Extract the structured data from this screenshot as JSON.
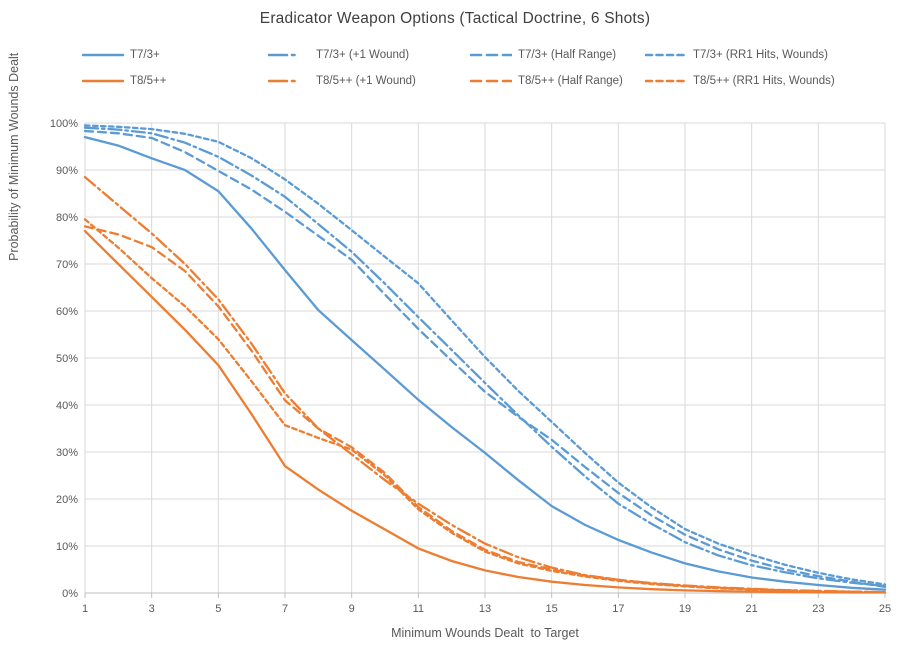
{
  "title": "Eradicator Weapon Options (Tactical Doctrine, 6 Shots)",
  "colors": {
    "blue": "#5B9BD5",
    "orange": "#ED7D31",
    "gridline": "#D9D9D9",
    "axis_line": "#BFBFBF",
    "text_gray": "#595959",
    "title_gray": "#3F3F3F"
  },
  "chart_data": {
    "type": "line",
    "title": "Eradicator Weapon Options (Tactical Doctrine, 6 Shots)",
    "xlabel": "Minimum Wounds Dealt  to Target",
    "ylabel": "Probability of Minimum Wounds Dealt",
    "xlim": [
      1,
      25
    ],
    "ylim": [
      0,
      100
    ],
    "grid": true,
    "legend_position": "top",
    "x": [
      1,
      2,
      3,
      4,
      5,
      6,
      7,
      8,
      9,
      10,
      11,
      12,
      13,
      14,
      15,
      16,
      17,
      18,
      19,
      20,
      21,
      22,
      23,
      24,
      25
    ],
    "xticks": [
      1,
      3,
      5,
      7,
      9,
      11,
      13,
      15,
      17,
      19,
      21,
      23,
      25
    ],
    "yticks_percent": [
      0,
      10,
      20,
      30,
      40,
      50,
      60,
      70,
      80,
      90,
      100
    ],
    "series": [
      {
        "name": "T7/3+",
        "color": "#5B9BD5",
        "dash": "solid",
        "values": [
          97,
          95.2,
          92.5,
          90,
          85.5,
          77.5,
          68.7,
          60.2,
          53.8,
          47.5,
          41.1,
          35.3,
          29.8,
          24,
          18.5,
          14.5,
          11.3,
          8.6,
          6.3,
          4.6,
          3.3,
          2.4,
          1.7,
          1.1,
          0.7
        ]
      },
      {
        "name": "T7/3+ (+1 Wound)",
        "color": "#5B9BD5",
        "dash": "long-dash-dot",
        "values": [
          99,
          98.6,
          97.8,
          95.8,
          92.8,
          88.8,
          84.3,
          78.5,
          72.6,
          65.8,
          58.7,
          51.7,
          44.7,
          37.8,
          31.1,
          24.8,
          19,
          14.7,
          10.8,
          8,
          5.9,
          4.4,
          3.1,
          2.2,
          1.5
        ]
      },
      {
        "name": "T7/3+ (Half Range)",
        "color": "#5B9BD5",
        "dash": "dash",
        "values": [
          98.3,
          97.8,
          96.8,
          93.8,
          89.8,
          85.8,
          81.1,
          76,
          70.9,
          63.5,
          56.2,
          49.4,
          42.8,
          37.5,
          32.6,
          26.8,
          21.3,
          16.5,
          12.4,
          9.3,
          6.9,
          5,
          3.6,
          2.4,
          1.3
        ]
      },
      {
        "name": "T7/3+ (RR1 Hits, Wounds)",
        "color": "#5B9BD5",
        "dash": "short-dash",
        "values": [
          99.5,
          99.2,
          98.7,
          97.7,
          96,
          92.5,
          88,
          82.8,
          77.2,
          71.5,
          65.9,
          58,
          50.2,
          43,
          36.4,
          29.8,
          23.5,
          18.2,
          13.6,
          10.5,
          8.1,
          6,
          4.3,
          2.9,
          1.8
        ]
      },
      {
        "name": "T8/5++",
        "color": "#ED7D31",
        "dash": "solid",
        "values": [
          77,
          70,
          63,
          56,
          48.5,
          38,
          27,
          22,
          17.5,
          13.5,
          9.5,
          6.8,
          4.8,
          3.4,
          2.4,
          1.7,
          1.2,
          0.8,
          0.55,
          0.4,
          0.3,
          0.2,
          0.15,
          0.1,
          0.1
        ]
      },
      {
        "name": "T8/5++ (+1 Wound)",
        "color": "#ED7D31",
        "dash": "long-dash-dot",
        "values": [
          88.5,
          82.5,
          76.5,
          70,
          62.5,
          53,
          42.5,
          35,
          29.5,
          24,
          19,
          14.5,
          10.5,
          7.6,
          5.4,
          3.8,
          2.8,
          2.1,
          1.6,
          1.2,
          0.9,
          0.6,
          0.45,
          0.3,
          0.2
        ]
      },
      {
        "name": "T8/5++ (Half Range)",
        "color": "#ED7D31",
        "dash": "dash",
        "values": [
          78,
          76.3,
          73.6,
          68.5,
          61,
          51.5,
          41,
          35,
          31,
          25.5,
          18.3,
          13.2,
          9.2,
          6.6,
          5,
          3.7,
          2.8,
          2,
          1.5,
          1.1,
          0.8,
          0.55,
          0.4,
          0.28,
          0.18
        ]
      },
      {
        "name": "T8/5++ (RR1 Hits, Wounds)",
        "color": "#ED7D31",
        "dash": "short-dash",
        "values": [
          79.5,
          73.5,
          67,
          61,
          54,
          45,
          35.7,
          33,
          30.5,
          25,
          17.8,
          12.8,
          8.8,
          6.3,
          4.7,
          3.5,
          2.6,
          1.9,
          1.4,
          1,
          0.75,
          0.5,
          0.35,
          0.25,
          0.15
        ]
      }
    ]
  }
}
